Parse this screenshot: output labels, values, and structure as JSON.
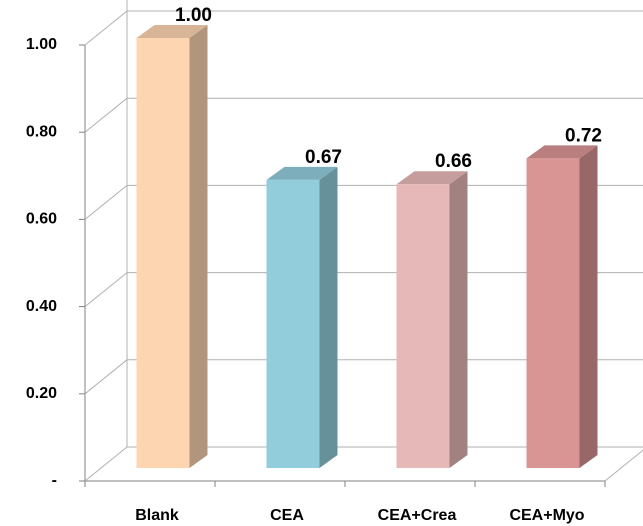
{
  "chart_data": {
    "type": "bar3d",
    "categories": [
      "Blank",
      "CEA",
      "CEA+Crea",
      "CEA+Myo"
    ],
    "values": [
      1.0,
      0.67,
      0.66,
      0.72
    ],
    "value_labels": [
      "1.00",
      "0.67",
      "0.66",
      "0.72"
    ],
    "colors": [
      "#fdd5b1",
      "#92cddc",
      "#e6b9b8",
      "#d99594"
    ],
    "ylim": [
      0,
      1
    ],
    "yticks": [
      {
        "value": 0,
        "label": "-"
      },
      {
        "value": 0.2,
        "label": "0.20"
      },
      {
        "value": 0.4,
        "label": "0.40"
      },
      {
        "value": 0.6,
        "label": "0.60"
      },
      {
        "value": 0.8,
        "label": "0.80"
      },
      {
        "value": 1,
        "label": "1.00"
      }
    ],
    "grid": true
  }
}
